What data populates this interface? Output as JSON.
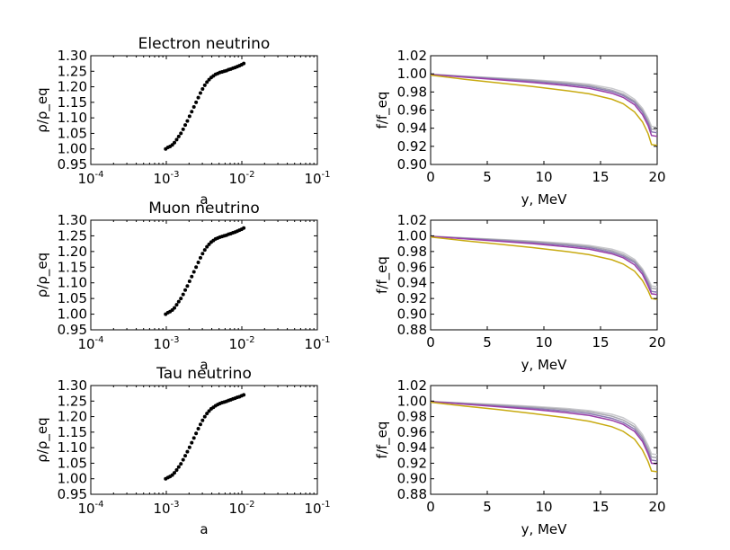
{
  "chart_data": [
    {
      "type": "scatter",
      "title": "Electron neutrino",
      "xlabel": "a",
      "ylabel": "ρ/ρ_eq",
      "xscale": "log",
      "xlim": [
        0.0001,
        0.1
      ],
      "ylim": [
        0.95,
        1.3
      ],
      "xticks": [
        {
          "base": "10",
          "exp": "-4"
        },
        {
          "base": "10",
          "exp": "-3"
        },
        {
          "base": "10",
          "exp": "-2"
        },
        {
          "base": "10",
          "exp": "-1"
        }
      ],
      "yticks": [
        "0.95",
        "1.00",
        "1.05",
        "1.10",
        "1.15",
        "1.20",
        "1.25",
        "1.30"
      ],
      "grid": false,
      "series": [
        {
          "color": "#000000",
          "x": [
            0.00098,
            0.00105,
            0.00112,
            0.0012,
            0.00128,
            0.00137,
            0.00146,
            0.00156,
            0.00167,
            0.00178,
            0.0019,
            0.00203,
            0.00217,
            0.00232,
            0.00248,
            0.00265,
            0.00283,
            0.00302,
            0.00323,
            0.00345,
            0.00368,
            0.00393,
            0.0042,
            0.00449,
            0.0048,
            0.00513,
            0.00548,
            0.00585,
            0.00625,
            0.00668,
            0.00713,
            0.00762,
            0.00814,
            0.0087,
            0.00929,
            0.00993,
            0.0106
          ],
          "y": [
            1.0,
            1.005,
            1.008,
            1.013,
            1.02,
            1.03,
            1.04,
            1.05,
            1.063,
            1.077,
            1.09,
            1.105,
            1.12,
            1.135,
            1.15,
            1.165,
            1.18,
            1.193,
            1.205,
            1.215,
            1.223,
            1.23,
            1.235,
            1.24,
            1.243,
            1.246,
            1.248,
            1.25,
            1.252,
            1.255,
            1.257,
            1.26,
            1.262,
            1.265,
            1.268,
            1.271,
            1.275
          ]
        }
      ]
    },
    {
      "type": "line",
      "title": "",
      "xlabel": "y, MeV",
      "ylabel": "f/f_eq",
      "xlim": [
        0,
        20
      ],
      "ylim": [
        0.9,
        1.02
      ],
      "xticks": [
        "0",
        "5",
        "10",
        "15",
        "20"
      ],
      "yticks": [
        "0.90",
        "0.92",
        "0.94",
        "0.96",
        "0.98",
        "1.00",
        "1.02"
      ],
      "grid": false,
      "series": [
        {
          "color": "#c8c8cc",
          "x": [
            0,
            3,
            6,
            9,
            12,
            14,
            16,
            17,
            18,
            18.7,
            19.2,
            19.5,
            20
          ],
          "y": [
            0.9995,
            0.9975,
            0.9955,
            0.9935,
            0.991,
            0.9885,
            0.984,
            0.98,
            0.972,
            0.962,
            0.951,
            0.942,
            0.941
          ]
        },
        {
          "color": "#a8a8b0",
          "x": [
            0,
            3,
            6,
            9,
            12,
            14,
            16,
            17,
            18,
            18.7,
            19.2,
            19.5,
            20
          ],
          "y": [
            0.9995,
            0.9972,
            0.995,
            0.9928,
            0.9898,
            0.9872,
            0.982,
            0.9775,
            0.97,
            0.96,
            0.948,
            0.939,
            0.938
          ]
        },
        {
          "color": "#8a7bb0",
          "x": [
            0,
            3,
            6,
            9,
            12,
            14,
            16,
            17,
            18,
            18.7,
            19.2,
            19.5,
            20
          ],
          "y": [
            0.9993,
            0.9968,
            0.9943,
            0.9918,
            0.9885,
            0.9858,
            0.9805,
            0.976,
            0.9685,
            0.958,
            0.946,
            0.936,
            0.935
          ]
        },
        {
          "color": "#9a3fa8",
          "x": [
            0,
            3,
            6,
            9,
            12,
            14,
            16,
            17,
            18,
            18.7,
            19.2,
            19.5,
            20
          ],
          "y": [
            0.9993,
            0.9963,
            0.9935,
            0.9905,
            0.987,
            0.984,
            0.9785,
            0.974,
            0.966,
            0.955,
            0.943,
            0.932,
            0.931
          ]
        },
        {
          "color": "#c8aa10",
          "x": [
            0,
            3,
            6,
            9,
            12,
            14,
            16,
            17,
            18,
            18.7,
            19.2,
            19.5,
            20
          ],
          "y": [
            0.9985,
            0.994,
            0.99,
            0.986,
            0.9815,
            0.978,
            0.972,
            0.967,
            0.958,
            0.947,
            0.934,
            0.922,
            0.921
          ]
        }
      ]
    },
    {
      "type": "scatter",
      "title": "Muon neutrino",
      "xlabel": "a",
      "ylabel": "ρ/ρ_eq",
      "xscale": "log",
      "xlim": [
        0.0001,
        0.1
      ],
      "ylim": [
        0.95,
        1.3
      ],
      "xticks": [
        {
          "base": "10",
          "exp": "-4"
        },
        {
          "base": "10",
          "exp": "-3"
        },
        {
          "base": "10",
          "exp": "-2"
        },
        {
          "base": "10",
          "exp": "-1"
        }
      ],
      "yticks": [
        "0.95",
        "1.00",
        "1.05",
        "1.10",
        "1.15",
        "1.20",
        "1.25",
        "1.30"
      ],
      "grid": false,
      "series": [
        {
          "color": "#000000",
          "x": [
            0.00098,
            0.00105,
            0.00112,
            0.0012,
            0.00128,
            0.00137,
            0.00146,
            0.00156,
            0.00167,
            0.00178,
            0.0019,
            0.00203,
            0.00217,
            0.00232,
            0.00248,
            0.00265,
            0.00283,
            0.00302,
            0.00323,
            0.00345,
            0.00368,
            0.00393,
            0.0042,
            0.00449,
            0.0048,
            0.00513,
            0.00548,
            0.00585,
            0.00625,
            0.00668,
            0.00713,
            0.00762,
            0.00814,
            0.0087,
            0.00929,
            0.00993,
            0.0106
          ],
          "y": [
            1.0,
            1.005,
            1.008,
            1.013,
            1.02,
            1.03,
            1.04,
            1.05,
            1.063,
            1.077,
            1.09,
            1.105,
            1.12,
            1.135,
            1.15,
            1.165,
            1.18,
            1.193,
            1.205,
            1.215,
            1.223,
            1.23,
            1.235,
            1.24,
            1.243,
            1.246,
            1.248,
            1.25,
            1.252,
            1.255,
            1.257,
            1.26,
            1.262,
            1.265,
            1.268,
            1.271,
            1.275
          ]
        }
      ]
    },
    {
      "type": "line",
      "title": "",
      "xlabel": "y, MeV",
      "ylabel": "f/f_eq",
      "xlim": [
        0,
        20
      ],
      "ylim": [
        0.88,
        1.02
      ],
      "xticks": [
        "0",
        "5",
        "10",
        "15",
        "20"
      ],
      "yticks": [
        "0.88",
        "0.90",
        "0.92",
        "0.94",
        "0.96",
        "0.98",
        "1.00",
        "1.02"
      ],
      "grid": false,
      "series": [
        {
          "color": "#c8c8cc",
          "x": [
            0,
            3,
            6,
            9,
            12,
            14,
            16,
            17,
            18,
            18.7,
            19.2,
            19.5,
            20
          ],
          "y": [
            0.9995,
            0.9975,
            0.9955,
            0.9933,
            0.9905,
            0.9878,
            0.983,
            0.9785,
            0.97,
            0.958,
            0.945,
            0.936,
            0.935
          ]
        },
        {
          "color": "#a8a8b0",
          "x": [
            0,
            3,
            6,
            9,
            12,
            14,
            16,
            17,
            18,
            18.7,
            19.2,
            19.5,
            20
          ],
          "y": [
            0.9995,
            0.9972,
            0.995,
            0.9926,
            0.9893,
            0.9864,
            0.981,
            0.976,
            0.968,
            0.956,
            0.942,
            0.933,
            0.932
          ]
        },
        {
          "color": "#8a7bb0",
          "x": [
            0,
            3,
            6,
            9,
            12,
            14,
            16,
            17,
            18,
            18.7,
            19.2,
            19.5,
            20
          ],
          "y": [
            0.9993,
            0.9967,
            0.994,
            0.9913,
            0.9878,
            0.9848,
            0.979,
            0.974,
            0.966,
            0.954,
            0.939,
            0.929,
            0.928
          ]
        },
        {
          "color": "#9a3fa8",
          "x": [
            0,
            3,
            6,
            9,
            12,
            14,
            16,
            17,
            18,
            18.7,
            19.2,
            19.5,
            20
          ],
          "y": [
            0.9993,
            0.9962,
            0.9932,
            0.99,
            0.986,
            0.983,
            0.977,
            0.972,
            0.963,
            0.951,
            0.936,
            0.926,
            0.925
          ]
        },
        {
          "color": "#c8aa10",
          "x": [
            0,
            3,
            6,
            9,
            12,
            14,
            16,
            17,
            18,
            18.7,
            19.2,
            19.5,
            20
          ],
          "y": [
            0.9985,
            0.9938,
            0.9895,
            0.985,
            0.98,
            0.976,
            0.9695,
            0.964,
            0.955,
            0.943,
            0.93,
            0.92,
            0.919
          ]
        }
      ]
    },
    {
      "type": "scatter",
      "title": "Tau neutrino",
      "xlabel": "a",
      "ylabel": "ρ/ρ_eq",
      "xscale": "log",
      "xlim": [
        0.0001,
        0.1
      ],
      "ylim": [
        0.95,
        1.3
      ],
      "xticks": [
        {
          "base": "10",
          "exp": "-4"
        },
        {
          "base": "10",
          "exp": "-3"
        },
        {
          "base": "10",
          "exp": "-2"
        },
        {
          "base": "10",
          "exp": "-1"
        }
      ],
      "yticks": [
        "0.95",
        "1.00",
        "1.05",
        "1.10",
        "1.15",
        "1.20",
        "1.25",
        "1.30"
      ],
      "grid": false,
      "series": [
        {
          "color": "#000000",
          "x": [
            0.00098,
            0.00105,
            0.00112,
            0.0012,
            0.00128,
            0.00137,
            0.00146,
            0.00156,
            0.00167,
            0.00178,
            0.0019,
            0.00203,
            0.00217,
            0.00232,
            0.00248,
            0.00265,
            0.00283,
            0.00302,
            0.00323,
            0.00345,
            0.00368,
            0.00393,
            0.0042,
            0.00449,
            0.0048,
            0.00513,
            0.00548,
            0.00585,
            0.00625,
            0.00668,
            0.00713,
            0.00762,
            0.00814,
            0.0087,
            0.00929,
            0.00993,
            0.0106
          ],
          "y": [
            1.0,
            1.004,
            1.007,
            1.012,
            1.019,
            1.028,
            1.038,
            1.048,
            1.061,
            1.074,
            1.087,
            1.101,
            1.116,
            1.131,
            1.146,
            1.161,
            1.175,
            1.188,
            1.2,
            1.21,
            1.218,
            1.225,
            1.23,
            1.235,
            1.239,
            1.242,
            1.245,
            1.247,
            1.249,
            1.252,
            1.254,
            1.257,
            1.259,
            1.262,
            1.264,
            1.267,
            1.27
          ]
        }
      ]
    },
    {
      "type": "line",
      "title": "",
      "xlabel": "y, MeV",
      "ylabel": "f/f_eq",
      "xlim": [
        0,
        20
      ],
      "ylim": [
        0.88,
        1.02
      ],
      "xticks": [
        "0",
        "5",
        "10",
        "15",
        "20"
      ],
      "yticks": [
        "0.88",
        "0.90",
        "0.92",
        "0.94",
        "0.96",
        "0.98",
        "1.00",
        "1.02"
      ],
      "grid": false,
      "series": [
        {
          "color": "#c8c8cc",
          "x": [
            0,
            3,
            6,
            9,
            12,
            14,
            16,
            17,
            18,
            18.7,
            19.2,
            19.5,
            20
          ],
          "y": [
            0.9995,
            0.9975,
            0.9955,
            0.9933,
            0.9905,
            0.9878,
            0.983,
            0.9785,
            0.97,
            0.957,
            0.943,
            0.932,
            0.931
          ]
        },
        {
          "color": "#a8a8b0",
          "x": [
            0,
            3,
            6,
            9,
            12,
            14,
            16,
            17,
            18,
            18.7,
            19.2,
            19.5,
            20
          ],
          "y": [
            0.9995,
            0.9971,
            0.9948,
            0.9923,
            0.989,
            0.986,
            0.9805,
            0.9755,
            0.967,
            0.954,
            0.939,
            0.928,
            0.927
          ]
        },
        {
          "color": "#8a7bb0",
          "x": [
            0,
            3,
            6,
            9,
            12,
            14,
            16,
            17,
            18,
            18.7,
            19.2,
            19.5,
            20
          ],
          "y": [
            0.9993,
            0.9965,
            0.9937,
            0.9908,
            0.987,
            0.9838,
            0.9778,
            0.9725,
            0.964,
            0.951,
            0.935,
            0.924,
            0.923
          ]
        },
        {
          "color": "#9a3fa8",
          "x": [
            0,
            3,
            6,
            9,
            12,
            14,
            16,
            17,
            18,
            18.7,
            19.2,
            19.5,
            20
          ],
          "y": [
            0.9993,
            0.996,
            0.9927,
            0.9893,
            0.985,
            0.9815,
            0.9752,
            0.97,
            0.961,
            0.948,
            0.932,
            0.92,
            0.919
          ]
        },
        {
          "color": "#c8aa10",
          "x": [
            0,
            3,
            6,
            9,
            12,
            14,
            16,
            17,
            18,
            18.7,
            19.2,
            19.5,
            20
          ],
          "y": [
            0.9985,
            0.9935,
            0.989,
            0.984,
            0.9785,
            0.974,
            0.967,
            0.961,
            0.951,
            0.937,
            0.922,
            0.91,
            0.909
          ]
        }
      ]
    }
  ]
}
